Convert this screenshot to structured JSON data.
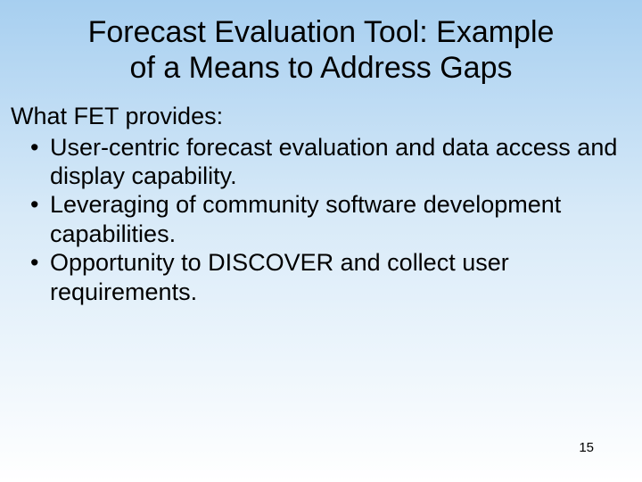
{
  "title_line1": "Forecast Evaluation Tool:  Example",
  "title_line2": "of a Means to Address Gaps",
  "intro": "What FET provides:",
  "bullets": [
    "User-centric forecast evaluation and data access and display capability.",
    "Leveraging of community software development capabilities.",
    "Opportunity to DISCOVER and collect user requirements."
  ],
  "page_number": "15",
  "colors": {
    "gradient_top": "#a7cff0",
    "gradient_mid": "#d8eaf8",
    "gradient_bottom": "#ffffff",
    "text": "#000000"
  },
  "typography": {
    "title_fontsize": 34,
    "body_fontsize": 27,
    "pagenum_fontsize": 15,
    "font_family": "Arial"
  }
}
